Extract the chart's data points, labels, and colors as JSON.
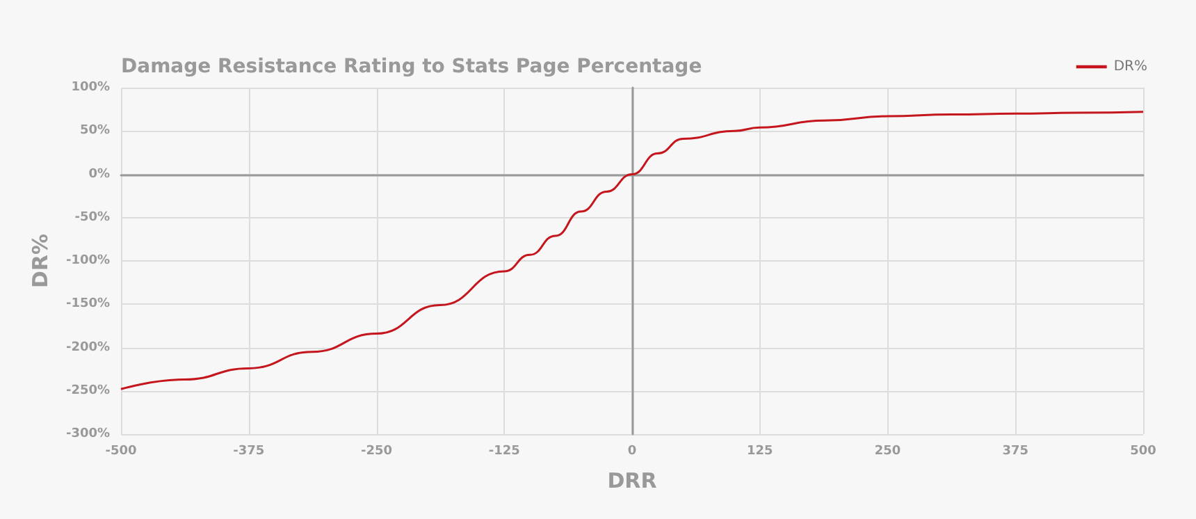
{
  "chart_data": {
    "type": "line",
    "title": "Damage Resistance Rating to Stats Page Percentage",
    "xlabel": "DRR",
    "ylabel": "DR%",
    "x": [
      -500,
      -438,
      -375,
      -313,
      -250,
      -188,
      -125,
      -100,
      -75,
      -50,
      -25,
      0,
      25,
      50,
      100,
      125,
      188,
      250,
      313,
      375,
      438,
      500
    ],
    "series": [
      {
        "name": "DR%",
        "color": "#c4161c",
        "values": [
          -248,
          -237,
          -224,
          -205,
          -184,
          -151,
          -112,
          -93,
          -71,
          -43,
          -20,
          0,
          24,
          41,
          50,
          54,
          62,
          67,
          69,
          70,
          71,
          72
        ]
      }
    ],
    "xlim": [
      -500,
      500
    ],
    "xticks": [
      -500,
      -375,
      -250,
      -125,
      0,
      125,
      250,
      375,
      500
    ],
    "ylim": [
      -300,
      100
    ],
    "yticks": [
      {
        "value": -300,
        "label": "-300%"
      },
      {
        "value": -250,
        "label": "-250%"
      },
      {
        "value": -200,
        "label": "-200%"
      },
      {
        "value": -150,
        "label": "-150%"
      },
      {
        "value": -100,
        "label": "-100%"
      },
      {
        "value": -50,
        "label": "-50%"
      },
      {
        "value": 0,
        "label": "0%"
      },
      {
        "value": 50,
        "label": "50%"
      },
      {
        "value": 100,
        "label": "100%"
      }
    ],
    "grid": true,
    "legend": "top right",
    "marker": "none",
    "line_style": "solid"
  }
}
